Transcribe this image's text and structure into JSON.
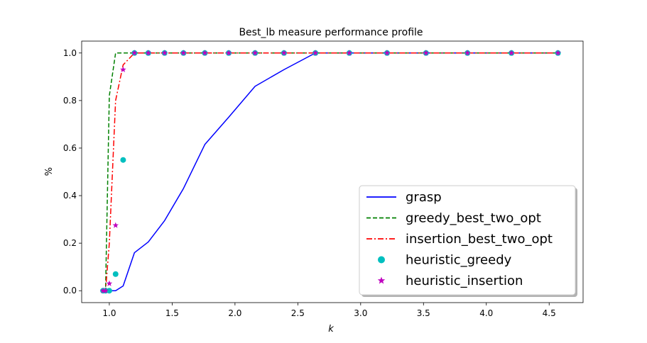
{
  "chart_data": {
    "type": "line",
    "title": "Best_lb measure performance profile",
    "xlabel": "k",
    "ylabel": "%",
    "xlim": [
      0.78,
      4.77
    ],
    "ylim": [
      -0.05,
      1.05
    ],
    "xticks": [
      1.0,
      1.5,
      2.0,
      2.5,
      3.0,
      3.5,
      4.0,
      4.5
    ],
    "xtick_labels": [
      "1.0",
      "1.5",
      "2.0",
      "2.5",
      "3.0",
      "3.5",
      "4.0",
      "4.5"
    ],
    "yticks": [
      0.0,
      0.2,
      0.4,
      0.6,
      0.8,
      1.0
    ],
    "ytick_labels": [
      "0.0",
      "0.2",
      "0.4",
      "0.6",
      "0.8",
      "1.0"
    ],
    "grid": false,
    "legend_position": "lower-right",
    "series": [
      {
        "name": "grasp",
        "style": "solid",
        "color": "#0000ff",
        "x": [
          0.95,
          0.97,
          1.0,
          1.05,
          1.11,
          1.2,
          1.31,
          1.44,
          1.59,
          1.76,
          1.95,
          2.16,
          2.39,
          2.64,
          2.91,
          3.21,
          3.52,
          3.85,
          4.2,
          4.57
        ],
        "y": [
          0.0,
          0.0,
          0.0,
          0.0,
          0.02,
          0.16,
          0.205,
          0.295,
          0.43,
          0.615,
          0.73,
          0.86,
          0.93,
          1.0,
          1.0,
          1.0,
          1.0,
          1.0,
          1.0,
          1.0
        ]
      },
      {
        "name": "greedy_best_two_opt",
        "style": "dashed",
        "color": "#008000",
        "x": [
          0.95,
          0.97,
          1.0,
          1.05,
          1.11,
          1.2,
          1.31,
          1.44,
          1.59,
          1.76,
          1.95,
          2.16,
          2.39,
          2.64,
          2.91,
          3.21,
          3.52,
          3.85,
          4.2,
          4.57
        ],
        "y": [
          0.0,
          0.0,
          0.82,
          1.0,
          1.0,
          1.0,
          1.0,
          1.0,
          1.0,
          1.0,
          1.0,
          1.0,
          1.0,
          1.0,
          1.0,
          1.0,
          1.0,
          1.0,
          1.0,
          1.0
        ]
      },
      {
        "name": "insertion_best_two_opt",
        "style": "dashdot",
        "color": "#ff0000",
        "x": [
          0.95,
          0.97,
          1.0,
          1.05,
          1.11,
          1.2,
          1.31,
          1.44,
          1.59,
          1.76,
          1.95,
          2.16,
          2.39,
          2.64,
          2.91,
          3.21,
          3.52,
          3.85,
          4.2,
          4.57
        ],
        "y": [
          0.0,
          0.0,
          0.2,
          0.8,
          0.95,
          1.0,
          1.0,
          1.0,
          1.0,
          1.0,
          1.0,
          1.0,
          1.0,
          1.0,
          1.0,
          1.0,
          1.0,
          1.0,
          1.0,
          1.0
        ]
      },
      {
        "name": "heuristic_greedy",
        "style": "marker-circle",
        "color": "#00bfbf",
        "x": [
          0.95,
          0.97,
          1.0,
          1.05,
          1.11,
          1.2,
          1.31,
          1.44,
          1.59,
          1.76,
          1.95,
          2.16,
          2.39,
          2.64,
          2.91,
          3.21,
          3.52,
          3.85,
          4.2,
          4.57
        ],
        "y": [
          0.0,
          0.0,
          0.0,
          0.07,
          0.55,
          1.0,
          1.0,
          1.0,
          1.0,
          1.0,
          1.0,
          1.0,
          1.0,
          1.0,
          1.0,
          1.0,
          1.0,
          1.0,
          1.0,
          1.0
        ]
      },
      {
        "name": "heuristic_insertion",
        "style": "marker-star",
        "color": "#bf00bf",
        "x": [
          0.95,
          0.97,
          1.0,
          1.05,
          1.11,
          1.2,
          1.31,
          1.44,
          1.59,
          1.76,
          1.95,
          2.16,
          2.39,
          2.64,
          2.91,
          3.21,
          3.52,
          3.85,
          4.2,
          4.57
        ],
        "y": [
          0.0,
          0.0,
          0.03,
          0.275,
          0.93,
          1.0,
          1.0,
          1.0,
          1.0,
          1.0,
          1.0,
          1.0,
          1.0,
          1.0,
          1.0,
          1.0,
          1.0,
          1.0,
          1.0,
          1.0
        ]
      }
    ]
  }
}
